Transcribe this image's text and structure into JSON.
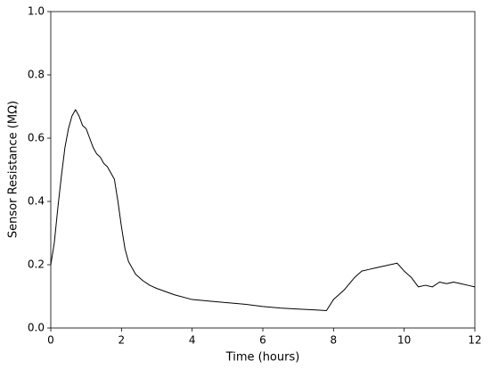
{
  "chart_data": {
    "type": "line",
    "x_label": "Time (hours)",
    "y_label": "Sensor Resistance (MΩ)",
    "x": [
      0,
      0.1,
      0.2,
      0.3,
      0.4,
      0.5,
      0.6,
      0.7,
      0.8,
      0.9,
      1.0,
      1.1,
      1.2,
      1.3,
      1.4,
      1.5,
      1.6,
      1.7,
      1.8,
      1.9,
      2.0,
      2.1,
      2.2,
      2.4,
      2.6,
      2.8,
      3.0,
      3.5,
      4.0,
      4.5,
      5.0,
      5.5,
      6.0,
      6.5,
      7.0,
      7.5,
      7.8,
      8.0,
      8.3,
      8.6,
      8.8,
      9.0,
      9.2,
      9.4,
      9.6,
      9.8,
      10.0,
      10.2,
      10.4,
      10.6,
      10.8,
      11.0,
      11.2,
      11.4,
      11.6,
      11.8,
      12.0
    ],
    "series": [
      {
        "color": "#000000",
        "values": [
          0.2,
          0.27,
          0.38,
          0.48,
          0.57,
          0.63,
          0.67,
          0.69,
          0.67,
          0.64,
          0.63,
          0.6,
          0.57,
          0.55,
          0.54,
          0.52,
          0.51,
          0.49,
          0.47,
          0.4,
          0.32,
          0.25,
          0.21,
          0.17,
          0.15,
          0.135,
          0.125,
          0.105,
          0.09,
          0.085,
          0.08,
          0.075,
          0.068,
          0.063,
          0.06,
          0.057,
          0.055,
          0.09,
          0.12,
          0.16,
          0.18,
          0.185,
          0.19,
          0.195,
          0.2,
          0.205,
          0.18,
          0.16,
          0.13,
          0.135,
          0.13,
          0.145,
          0.14,
          0.145,
          0.14,
          0.135,
          0.13
        ]
      }
    ],
    "xlim": [
      0,
      12
    ],
    "ylim": [
      0,
      1.0
    ],
    "xticks": [
      0,
      2,
      4,
      6,
      8,
      10,
      12
    ],
    "yticks": [
      {
        "value": 0,
        "label": "0.0"
      },
      0.2,
      0.4,
      0.6,
      0.8,
      {
        "value": 1.0,
        "label": "1.0"
      }
    ],
    "grid": false
  }
}
